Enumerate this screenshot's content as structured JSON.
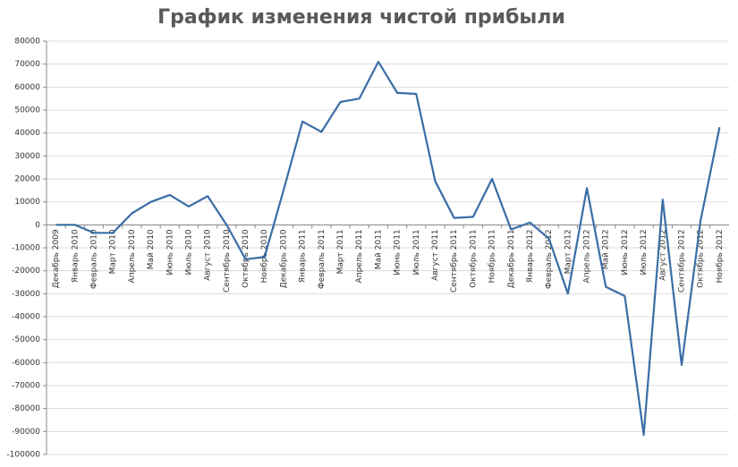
{
  "chart_data": {
    "type": "line",
    "title": "График изменения чистой прибыли",
    "categories": [
      "Декабрь 2009",
      "Январь 2010",
      "Февраль 2010",
      "Март 2010",
      "Апрель 2010",
      "Май 2010",
      "Июнь 2010",
      "Июль 2010",
      "Август 2010",
      "Сентябрь 2010",
      "Октябрь 2010",
      "Ноябрь 2010",
      "Декабрь 2010",
      "Январь 2011",
      "Февраль 2011",
      "Март 2011",
      "Апрель 2011",
      "Май 2011",
      "Июнь 2011",
      "Июль 2011",
      "Август 2011",
      "Сентябрь 2011",
      "Октябрь 2011",
      "Ноябрь 2011",
      "Декабрь 2011",
      "Январь 2012",
      "Февраль 2012",
      "Март 2012",
      "Апрель 2012",
      "Май 2012",
      "Июнь 2012",
      "Июль 2012",
      "Август 2012",
      "Сентябрь 2012",
      "Октябрь 2012",
      "Ноябрь 2012"
    ],
    "values": [
      0,
      0,
      -3500,
      -3500,
      5000,
      10000,
      13000,
      8000,
      12500,
      0,
      -15000,
      -14000,
      15000,
      45000,
      40500,
      53500,
      55000,
      71000,
      57500,
      57000,
      19000,
      3000,
      3500,
      20000,
      -2000,
      1000,
      -6000,
      -30000,
      16000,
      -27000,
      -31000,
      -91500,
      11000,
      -61000,
      2000,
      42500
    ],
    "color": "#3a6ea5",
    "ylim": [
      -100000,
      80000
    ],
    "yticks": [
      -100000,
      -90000,
      -80000,
      -70000,
      -60000,
      -50000,
      -40000,
      -30000,
      -20000,
      -10000,
      0,
      10000,
      20000,
      30000,
      40000,
      50000,
      60000,
      70000,
      80000
    ],
    "grid": true
  }
}
